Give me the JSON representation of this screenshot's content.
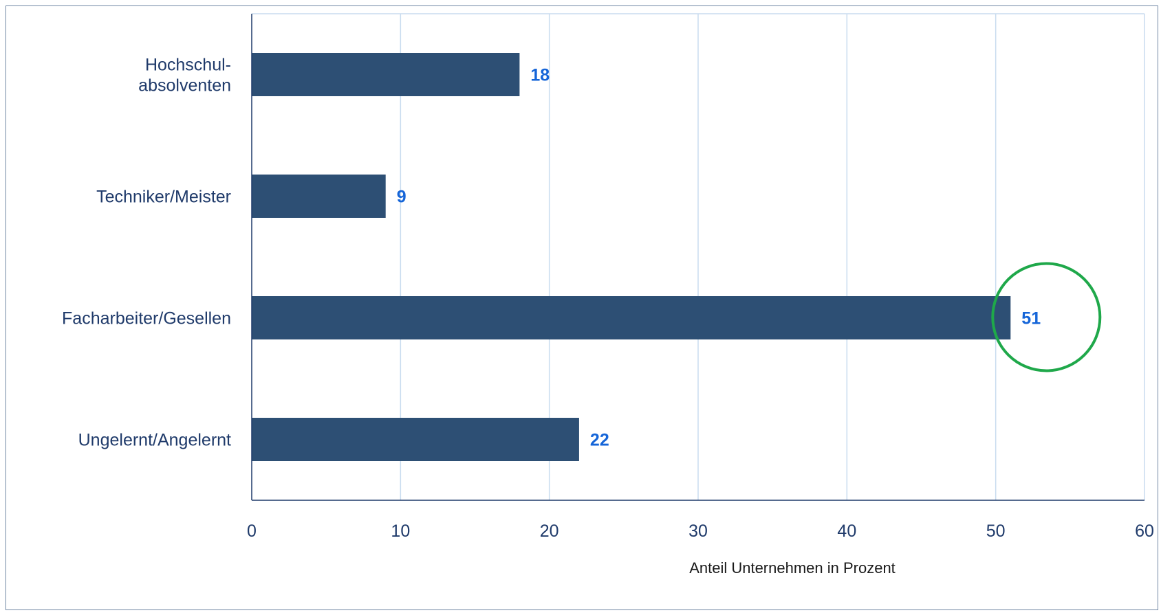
{
  "chart_data": {
    "type": "bar",
    "orientation": "horizontal",
    "categories": [
      [
        "Hochschul-",
        "absolventen"
      ],
      [
        "Techniker/Meister"
      ],
      [
        "Facharbeiter/Gesellen"
      ],
      [
        "Ungelernt/Angelernt"
      ]
    ],
    "values": [
      18,
      9,
      51,
      22
    ],
    "data_labels": [
      "18",
      "9",
      "51",
      "22"
    ],
    "xlabel": "Anteil Unternehmen in Prozent",
    "ylabel": "",
    "xlim": [
      0,
      60
    ],
    "x_ticks": [
      0,
      10,
      20,
      30,
      40,
      50,
      60
    ],
    "x_tick_labels": [
      "0",
      "10",
      "20",
      "30",
      "40",
      "50",
      "60"
    ],
    "grid": "vertical",
    "legend": "none",
    "highlight": {
      "category_index": 2,
      "shape": "circle",
      "color": "#1fa84a"
    },
    "colors": {
      "bar": "#2d4f74",
      "data_label": "#1565d8",
      "category_label": "#1f3a6a",
      "tick_label": "#1f3a6a",
      "grid": "#c9dcef",
      "axis": "#1f3a6a",
      "frame": "#6f86a3",
      "axis_title": "#1a1a1a"
    }
  }
}
